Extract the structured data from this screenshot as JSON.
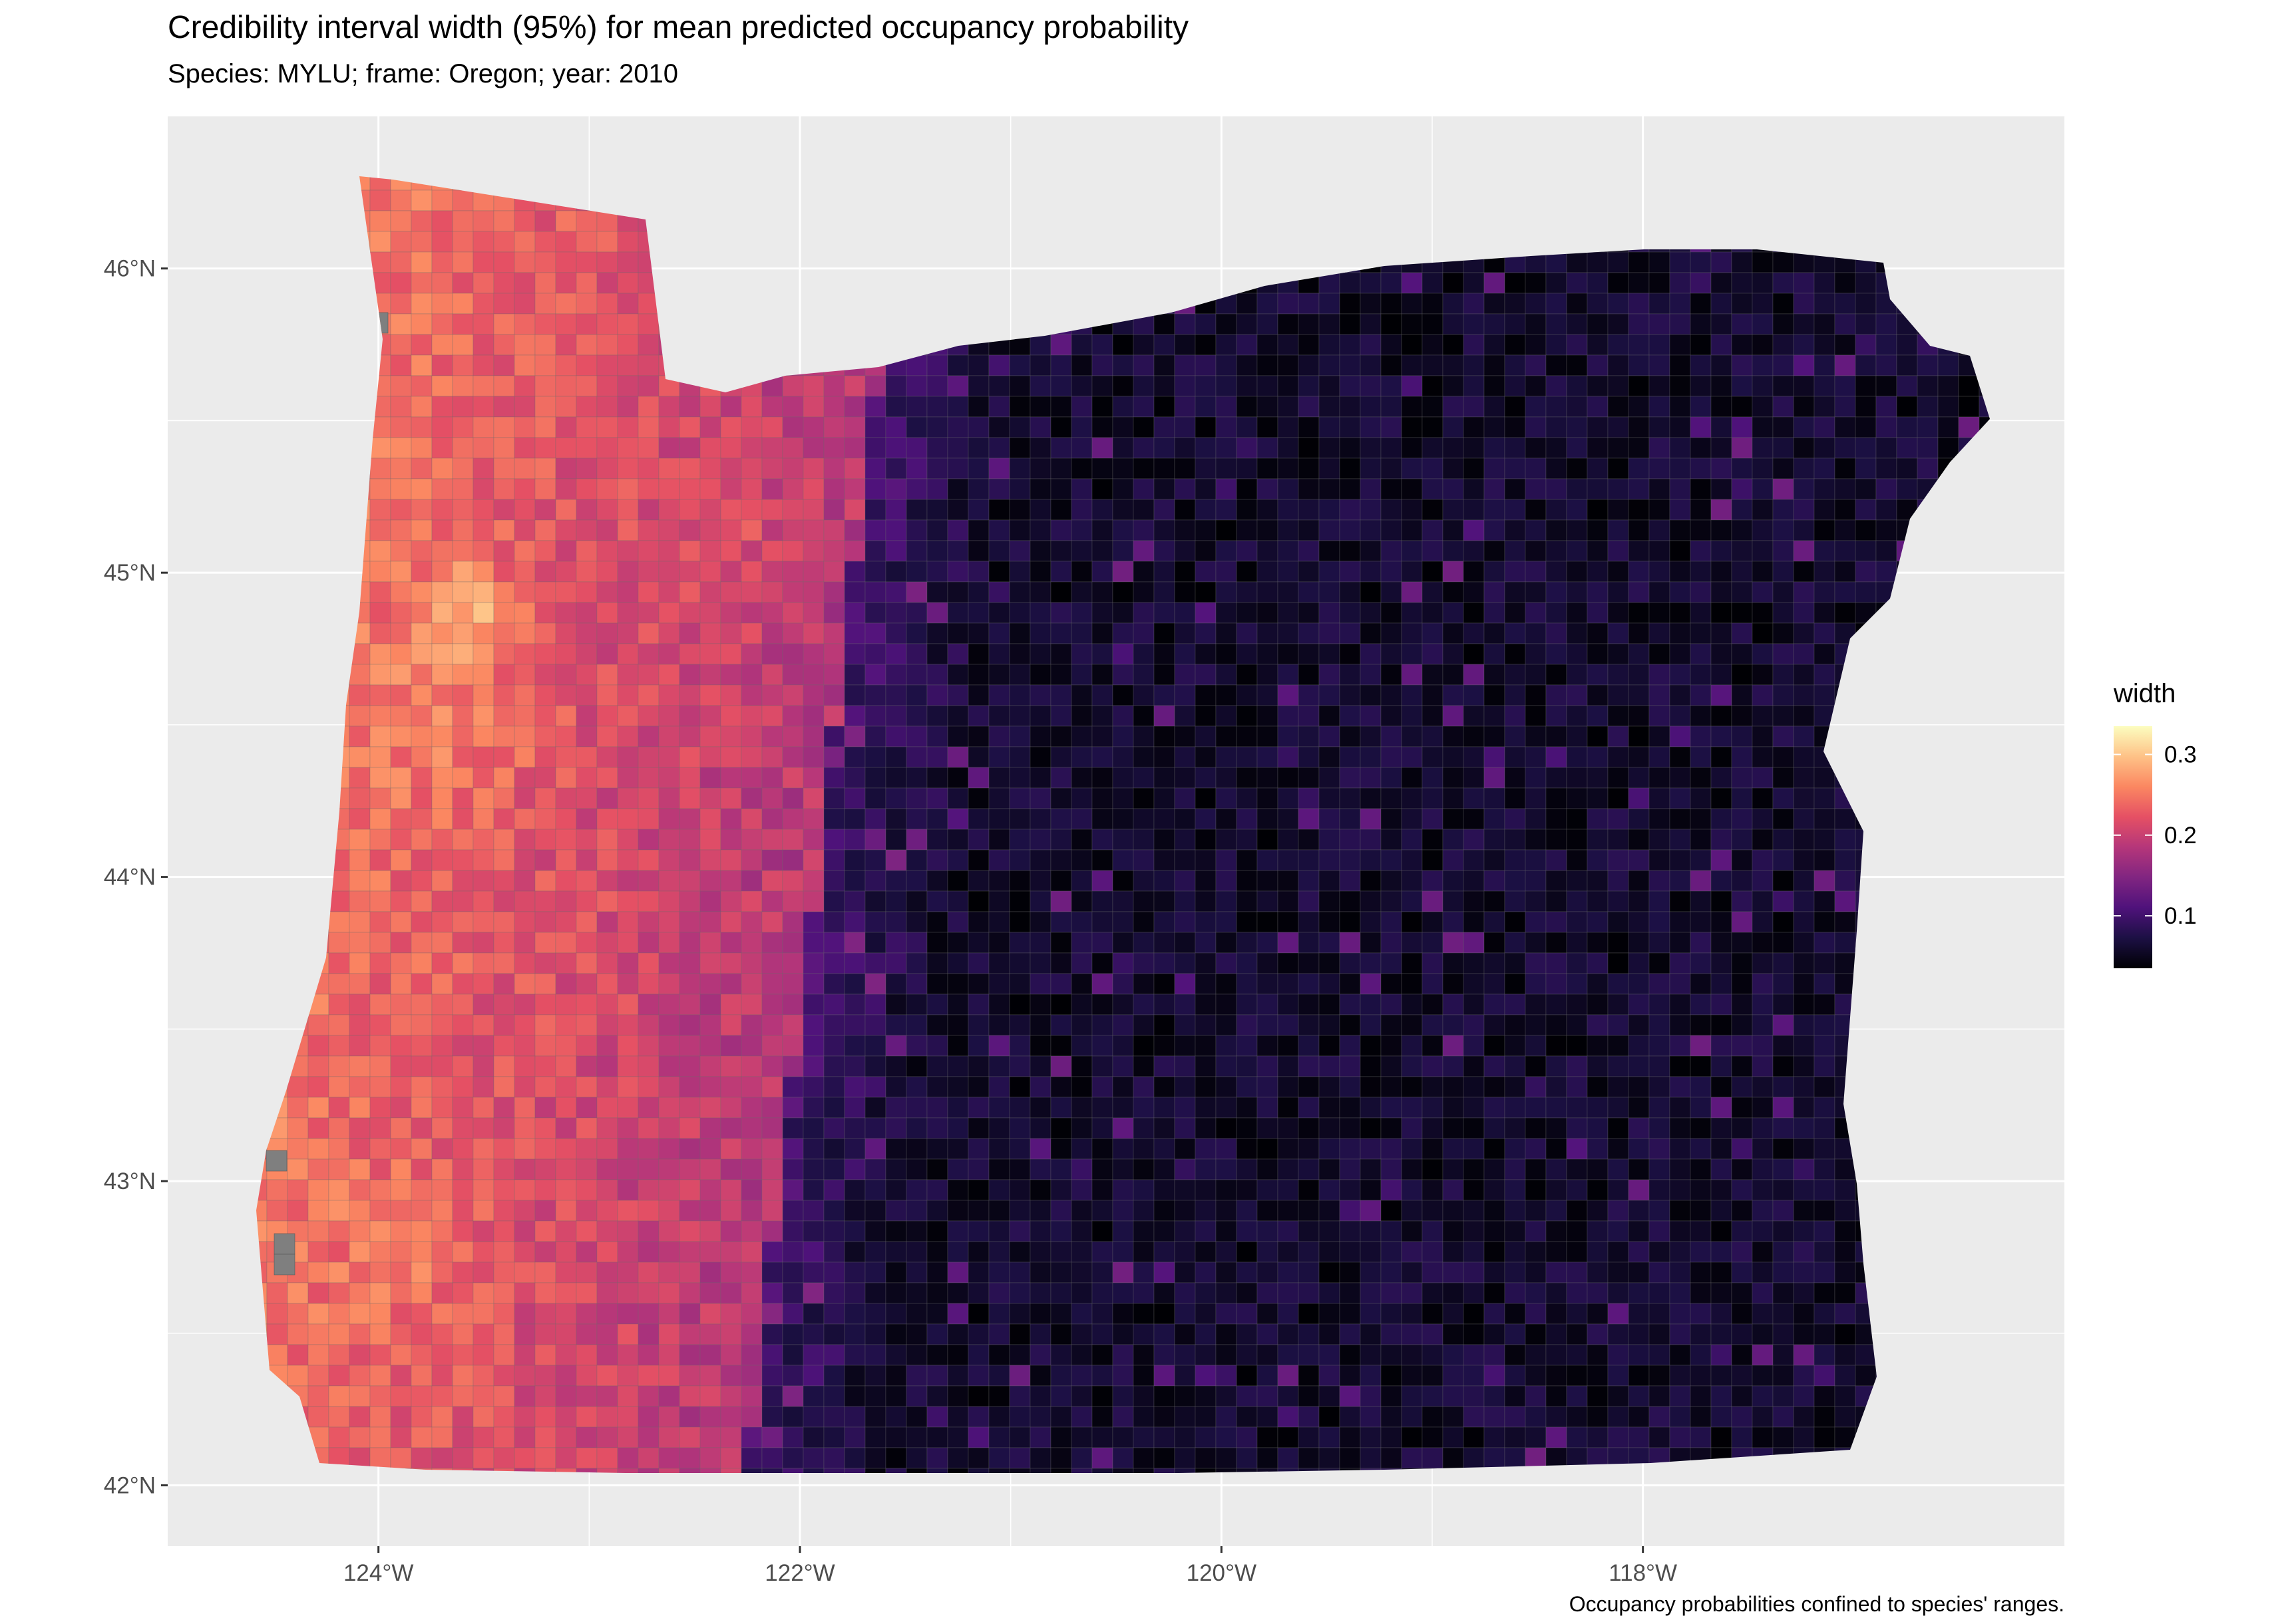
{
  "title": "Credibility interval width (95%) for mean predicted occupancy probability",
  "subtitle": "Species: MYLU; frame: Oregon; year: 2010",
  "caption": "Occupancy probabilities confined to species' ranges.",
  "colors": {
    "panel_background": "#EBEBEB",
    "grid": "#FFFFFF",
    "na_cell": "#7F7F7F",
    "scale_low": "#000004",
    "scale_high": "#FCFDBF",
    "palette": "magma"
  },
  "map": {
    "x_ticks": [
      "124°W",
      "122°W",
      "120°W",
      "118°W"
    ],
    "y_ticks": [
      "42°N",
      "43°N",
      "44°N",
      "45°N",
      "46°N"
    ],
    "xlim": [
      -125.0,
      -116.0
    ],
    "ylim": [
      41.8,
      46.5
    ]
  },
  "legend": {
    "title": "width",
    "breaks": [
      "0.1",
      "0.2",
      "0.3"
    ],
    "limits": [
      0.035,
      0.335
    ]
  }
}
